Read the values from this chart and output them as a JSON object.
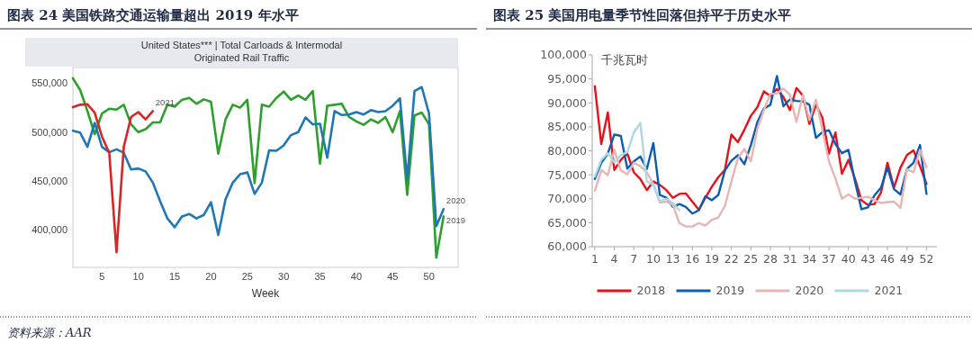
{
  "chart_data": [
    {
      "type": "line",
      "title": "图表 24   美国铁路交通运输量超出 2019 年水平",
      "subtitle": "United States*** | Total Carloads & Intermodal\nOriginated Rail Traffic",
      "xlabel": "Week",
      "annotations": [
        "资料来源：AAR"
      ],
      "xlim": [
        1,
        54
      ],
      "xticks": [
        5,
        10,
        15,
        20,
        25,
        30,
        35,
        40,
        45,
        50
      ],
      "ylim": [
        362000,
        566000
      ],
      "yticks": [
        {
          "value": 400000,
          "label": "400,000"
        },
        {
          "value": 450000,
          "label": "450,000"
        },
        {
          "value": 500000,
          "label": "500,000"
        },
        {
          "value": 550000,
          "label": "550,000"
        }
      ],
      "grid": false,
      "legend": false,
      "x": [
        1,
        2,
        3,
        4,
        5,
        6,
        7,
        8,
        9,
        10,
        11,
        12,
        13,
        14,
        15,
        16,
        17,
        18,
        19,
        20,
        21,
        22,
        23,
        24,
        25,
        26,
        27,
        28,
        29,
        30,
        31,
        32,
        33,
        34,
        35,
        36,
        37,
        38,
        39,
        40,
        41,
        42,
        43,
        44,
        45,
        46,
        47,
        48,
        49,
        50,
        51,
        52
      ],
      "series": [
        {
          "name": "2019",
          "color": "#2ca02c",
          "values": [
            555000,
            543000,
            521500,
            498000,
            519000,
            524000,
            523000,
            528000,
            508000,
            500000,
            503000,
            510000,
            510000,
            528000,
            526000,
            533000,
            535000,
            529000,
            533500,
            531000,
            478000,
            513000,
            528000,
            525000,
            533000,
            448000,
            528000,
            526000,
            535000,
            541500,
            533000,
            537500,
            533000,
            542000,
            468000,
            527000,
            528000,
            529000,
            515500,
            511000,
            507500,
            513000,
            509500,
            515500,
            500000,
            521500,
            436000,
            517000,
            520000,
            508000,
            372000,
            414000
          ]
        },
        {
          "name": "2020",
          "color": "#1f77b4",
          "values": [
            501500,
            499500,
            485000,
            509500,
            485000,
            479500,
            482500,
            479000,
            462000,
            463000,
            460000,
            448500,
            429500,
            412000,
            403000,
            414000,
            416500,
            412000,
            415500,
            428500,
            395000,
            431500,
            448500,
            457000,
            459000,
            437000,
            448500,
            481500,
            481000,
            486500,
            497000,
            500000,
            515000,
            508000,
            508500,
            474000,
            521500,
            517500,
            518000,
            520500,
            518000,
            522500,
            520500,
            521500,
            527000,
            534500,
            451500,
            542000,
            546000,
            519000,
            404000,
            421500
          ]
        },
        {
          "name": "2021",
          "color": "#d62728",
          "x": [
            1,
            2,
            3,
            4,
            5,
            6,
            7,
            8,
            9,
            10,
            11,
            12
          ],
          "values": [
            525500,
            528000,
            528500,
            520000,
            495500,
            479000,
            377500,
            485000,
            515500,
            520500,
            513000,
            521500
          ]
        }
      ]
    },
    {
      "type": "line",
      "title": "图表 25   美国用电量季节性回落但持平于历史水平",
      "ylabel": "千兆瓦时",
      "xlim": [
        0.6,
        53.6
      ],
      "xticks": [
        1,
        4,
        7,
        10,
        13,
        16,
        19,
        22,
        25,
        28,
        31,
        34,
        37,
        40,
        43,
        46,
        49,
        52
      ],
      "ylim": [
        60000,
        100000
      ],
      "yticks": [
        {
          "value": 60000,
          "label": "60,000"
        },
        {
          "value": 65000,
          "label": "65,000"
        },
        {
          "value": 70000,
          "label": "70,000"
        },
        {
          "value": 75000,
          "label": "75,000"
        },
        {
          "value": 80000,
          "label": "80,000"
        },
        {
          "value": 85000,
          "label": "85,000"
        },
        {
          "value": 90000,
          "label": "90,000"
        },
        {
          "value": 95000,
          "label": "95,000"
        },
        {
          "value": 100000,
          "label": "100,000"
        }
      ],
      "grid": false,
      "legend": "bottom",
      "x": [
        1,
        2,
        3,
        4,
        5,
        6,
        7,
        8,
        9,
        10,
        11,
        12,
        13,
        14,
        15,
        16,
        17,
        18,
        19,
        20,
        21,
        22,
        23,
        24,
        25,
        26,
        27,
        28,
        29,
        30,
        31,
        32,
        33,
        34,
        35,
        36,
        37,
        38,
        39,
        40,
        41,
        42,
        43,
        44,
        45,
        46,
        47,
        48,
        49,
        50,
        51,
        52
      ],
      "series": [
        {
          "name": "2018",
          "color": "#e8101a",
          "values": [
            93500,
            81400,
            88000,
            76000,
            78100,
            79400,
            75500,
            74100,
            71800,
            73600,
            72900,
            71800,
            70200,
            71000,
            71100,
            69400,
            67700,
            70200,
            72500,
            74500,
            76000,
            83400,
            81800,
            84400,
            87300,
            89100,
            92400,
            91400,
            92900,
            91200,
            88500,
            93100,
            91500,
            85600,
            89600,
            86900,
            79400,
            83800,
            75200,
            78100,
            74200,
            69700,
            68700,
            68900,
            71300,
            77500,
            72300,
            76500,
            79100,
            80100,
            76800,
            73100
          ]
        },
        {
          "name": "2019",
          "color": "#0a5db0",
          "values": [
            74100,
            77500,
            79400,
            83400,
            83100,
            76300,
            77800,
            78800,
            76200,
            81600,
            70800,
            70200,
            68300,
            68900,
            68300,
            66900,
            67600,
            70500,
            69700,
            70800,
            75900,
            77900,
            79100,
            77200,
            81200,
            86000,
            88800,
            89600,
            95600,
            89300,
            90700,
            90400,
            90300,
            89600,
            82700,
            83900,
            84300,
            81400,
            79500,
            80200,
            73600,
            67800,
            68200,
            70700,
            72300,
            76500,
            72000,
            70900,
            76200,
            77500,
            81200,
            71000
          ]
        },
        {
          "name": "2020",
          "color": "#e8b4b4",
          "values": [
            71600,
            76000,
            74900,
            80200,
            75900,
            75100,
            77500,
            76800,
            75500,
            73100,
            69200,
            69400,
            68700,
            64900,
            64200,
            64200,
            64900,
            64400,
            65600,
            66100,
            68500,
            73600,
            78400,
            80400,
            77800,
            84600,
            88500,
            91900,
            91900,
            93000,
            91700,
            86000,
            91600,
            86400,
            90700,
            84300,
            77800,
            74200,
            70000,
            70900,
            70000,
            70200,
            70400,
            69700,
            69100,
            69300,
            69400,
            68100,
            76200,
            75500,
            80200,
            76500
          ]
        },
        {
          "name": "2021",
          "color": "#add8e6",
          "x": [
            1,
            2,
            3,
            4,
            5,
            6,
            7,
            8,
            9,
            10,
            11,
            12,
            13,
            14
          ],
          "values": [
            74600,
            78100,
            79500,
            77600,
            79100,
            79700,
            83800,
            85800,
            73600,
            72900,
            69400,
            70000,
            69100,
            67600
          ]
        }
      ]
    }
  ]
}
